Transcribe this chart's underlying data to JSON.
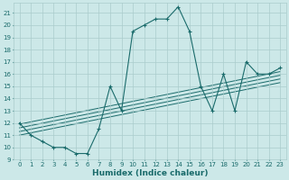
{
  "title": "",
  "xlabel": "Humidex (Indice chaleur)",
  "bg_color": "#cce8e8",
  "grid_color": "#aacccc",
  "line_color": "#1a6b6b",
  "xlim": [
    -0.5,
    23.5
  ],
  "ylim": [
    9,
    21.8
  ],
  "xticks": [
    0,
    1,
    2,
    3,
    4,
    5,
    6,
    7,
    8,
    9,
    10,
    11,
    12,
    13,
    14,
    15,
    16,
    17,
    18,
    19,
    20,
    21,
    22,
    23
  ],
  "yticks": [
    9,
    10,
    11,
    12,
    13,
    14,
    15,
    16,
    17,
    18,
    19,
    20,
    21
  ],
  "main_x": [
    0,
    1,
    2,
    3,
    4,
    5,
    6,
    7,
    8,
    9,
    10,
    11,
    12,
    13,
    14,
    15,
    16,
    17,
    18,
    19,
    20,
    21,
    22,
    23
  ],
  "main_y": [
    12,
    11,
    10.5,
    10,
    10,
    9.5,
    9.5,
    11.5,
    15,
    13,
    19.5,
    20,
    20.5,
    20.5,
    21.5,
    19.5,
    15,
    13,
    16,
    13,
    17,
    16,
    16.0,
    16.5
  ],
  "trend_lines": [
    {
      "x": [
        0,
        23
      ],
      "y": [
        11.0,
        15.3
      ]
    },
    {
      "x": [
        0,
        23
      ],
      "y": [
        11.3,
        15.6
      ]
    },
    {
      "x": [
        0,
        23
      ],
      "y": [
        11.6,
        15.9
      ]
    },
    {
      "x": [
        0,
        23
      ],
      "y": [
        11.9,
        16.2
      ]
    }
  ],
  "tick_fontsize": 5.0,
  "xlabel_fontsize": 6.5
}
